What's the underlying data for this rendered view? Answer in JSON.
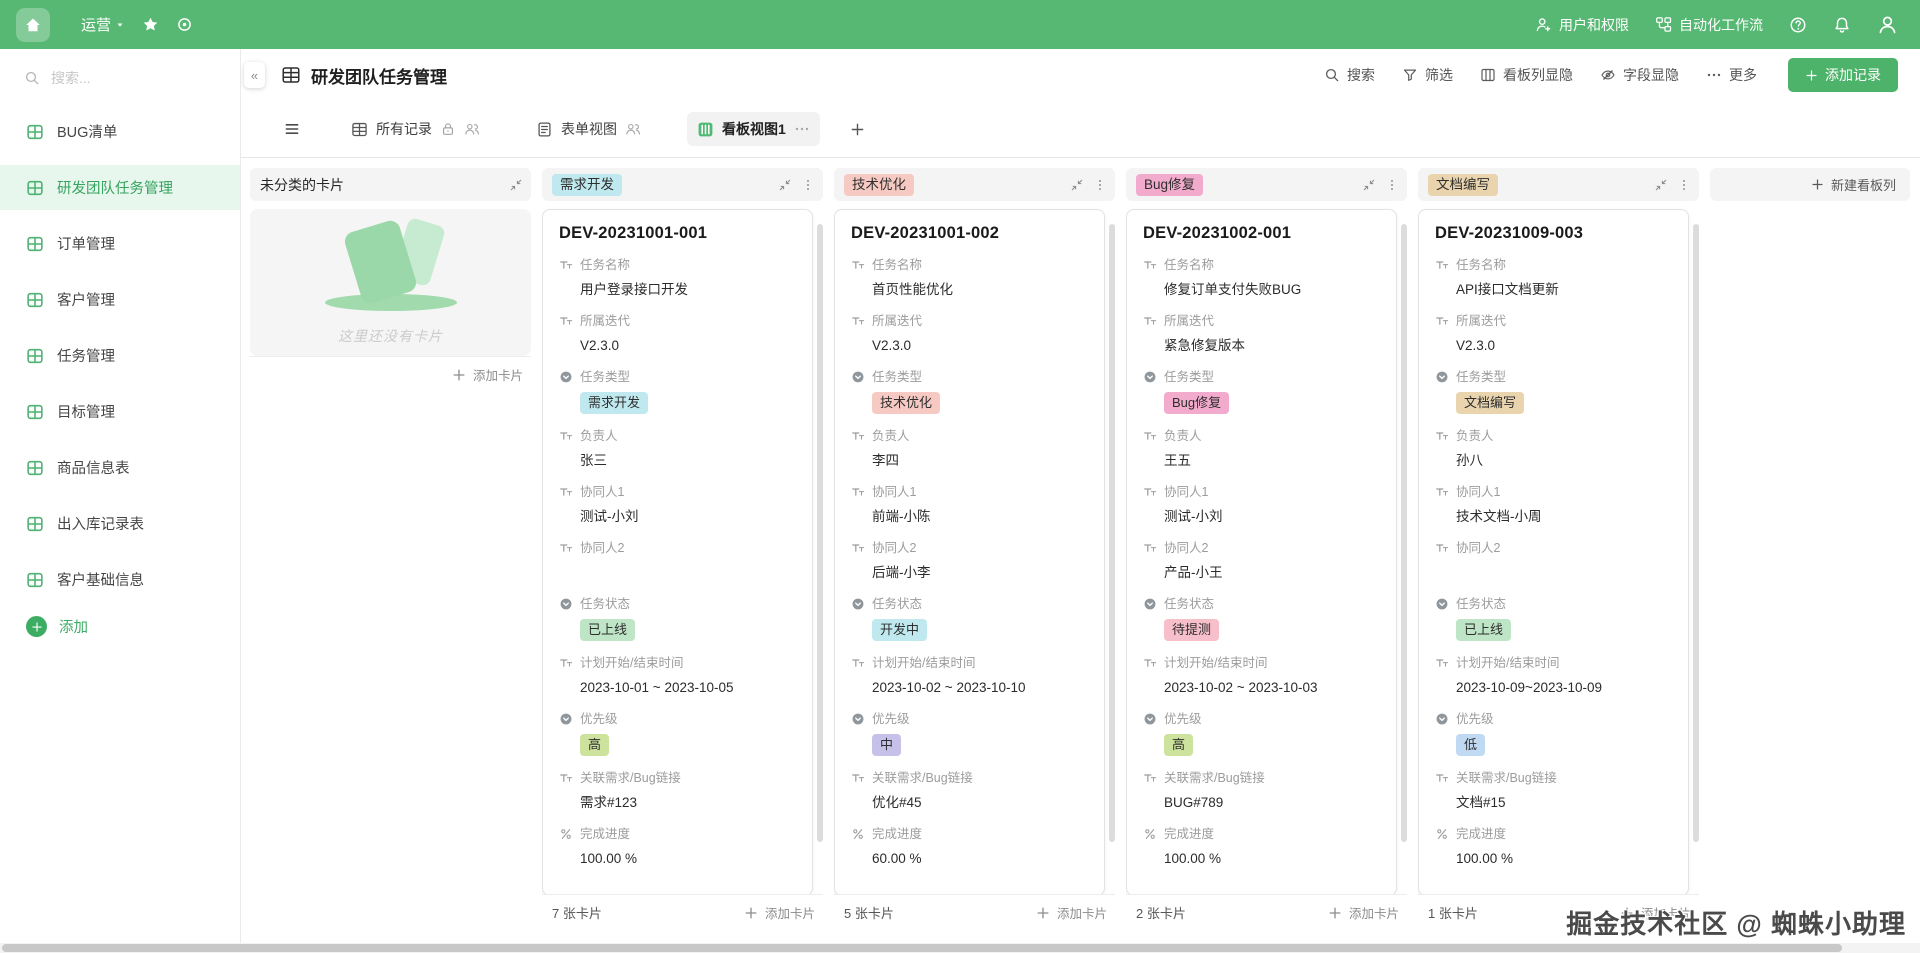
{
  "topbar": {
    "workspace": "运营",
    "right_items": [
      {
        "icon": "user-plus",
        "label": "用户和权限"
      },
      {
        "icon": "workflow",
        "label": "自动化工作流"
      }
    ]
  },
  "sidebar": {
    "search_placeholder": "搜索...",
    "items": [
      {
        "label": "BUG清单",
        "active": false
      },
      {
        "label": "研发团队任务管理",
        "active": true
      },
      {
        "label": "订单管理",
        "active": false
      },
      {
        "label": "客户管理",
        "active": false
      },
      {
        "label": "任务管理",
        "active": false
      },
      {
        "label": "目标管理",
        "active": false
      },
      {
        "label": "商品信息表",
        "active": false
      },
      {
        "label": "出入库记录表",
        "active": false
      },
      {
        "label": "客户基础信息",
        "active": false
      }
    ],
    "add_label": "添加"
  },
  "header": {
    "title": "研发团队任务管理",
    "actions": [
      {
        "icon": "search",
        "label": "搜索"
      },
      {
        "icon": "filter",
        "label": "筛选"
      },
      {
        "icon": "board",
        "label": "看板列显隐"
      },
      {
        "icon": "eye-off",
        "label": "字段显隐"
      },
      {
        "icon": "more",
        "label": "更多"
      }
    ],
    "add_record_label": "添加记录"
  },
  "tabs": [
    {
      "icon": "grid",
      "label": "所有记录",
      "extras": [
        "lock",
        "people"
      ],
      "active": false
    },
    {
      "icon": "form",
      "label": "表单视图",
      "extras": [
        "people"
      ],
      "active": false
    },
    {
      "icon": "kanban",
      "label": "看板视图1",
      "extras": [
        "more"
      ],
      "active": true
    }
  ],
  "board": {
    "add_card_label": "添加卡片",
    "new_column_label": "新建看板列",
    "columns": [
      {
        "title": "未分类的卡片",
        "empty": true,
        "empty_text": "这里还没有卡片",
        "footer_count": ""
      },
      {
        "title": "需求开发",
        "chip_color": "#BFE9EF",
        "footer_count": "7 张卡片",
        "card": {
          "id": "DEV-20231001-001",
          "fields": [
            {
              "icon": "text",
              "label": "任务名称",
              "value": "用户登录接口开发"
            },
            {
              "icon": "text",
              "label": "所属迭代",
              "value": "V2.3.0"
            },
            {
              "icon": "select",
              "label": "任务类型",
              "chip": "需求开发",
              "chip_color": "#BFE9EF"
            },
            {
              "icon": "text",
              "label": "负责人",
              "value": "张三"
            },
            {
              "icon": "text",
              "label": "协同人1",
              "value": "测试-小刘"
            },
            {
              "icon": "text",
              "label": "协同人2",
              "value": ""
            },
            {
              "icon": "select",
              "label": "任务状态",
              "chip": "已上线",
              "chip_color": "#BEE5C6"
            },
            {
              "icon": "text",
              "label": "计划开始/结束时间",
              "value": "2023-10-01 ~ 2023-10-05"
            },
            {
              "icon": "select",
              "label": "优先级",
              "chip": "高",
              "chip_color": "#CDE29C"
            },
            {
              "icon": "text",
              "label": "关联需求/Bug链接",
              "value": "需求#123"
            },
            {
              "icon": "percent",
              "label": "完成进度",
              "value": "100.00 %"
            }
          ]
        }
      },
      {
        "title": "技术优化",
        "chip_color": "#F6CAC3",
        "footer_count": "5 张卡片",
        "card": {
          "id": "DEV-20231001-002",
          "fields": [
            {
              "icon": "text",
              "label": "任务名称",
              "value": "首页性能优化"
            },
            {
              "icon": "text",
              "label": "所属迭代",
              "value": "V2.3.0"
            },
            {
              "icon": "select",
              "label": "任务类型",
              "chip": "技术优化",
              "chip_color": "#F6CAC3"
            },
            {
              "icon": "text",
              "label": "负责人",
              "value": "李四"
            },
            {
              "icon": "text",
              "label": "协同人1",
              "value": "前端-小陈"
            },
            {
              "icon": "text",
              "label": "协同人2",
              "value": "后端-小李"
            },
            {
              "icon": "select",
              "label": "任务状态",
              "chip": "开发中",
              "chip_color": "#BFE9EF"
            },
            {
              "icon": "text",
              "label": "计划开始/结束时间",
              "value": "2023-10-02 ~ 2023-10-10"
            },
            {
              "icon": "select",
              "label": "优先级",
              "chip": "中",
              "chip_color": "#C6C1E8"
            },
            {
              "icon": "text",
              "label": "关联需求/Bug链接",
              "value": "优化#45"
            },
            {
              "icon": "percent",
              "label": "完成进度",
              "value": "60.00 %"
            }
          ]
        }
      },
      {
        "title": "Bug修复",
        "chip_color": "#F3ABCD",
        "footer_count": "2 张卡片",
        "card": {
          "id": "DEV-20231002-001",
          "fields": [
            {
              "icon": "text",
              "label": "任务名称",
              "value": "修复订单支付失败BUG"
            },
            {
              "icon": "text",
              "label": "所属迭代",
              "value": "紧急修复版本"
            },
            {
              "icon": "select",
              "label": "任务类型",
              "chip": "Bug修复",
              "chip_color": "#F3ABCD"
            },
            {
              "icon": "text",
              "label": "负责人",
              "value": "王五"
            },
            {
              "icon": "text",
              "label": "协同人1",
              "value": "测试-小刘"
            },
            {
              "icon": "text",
              "label": "协同人2",
              "value": "产品-小王"
            },
            {
              "icon": "select",
              "label": "任务状态",
              "chip": "待提测",
              "chip_color": "#F7BFC9"
            },
            {
              "icon": "text",
              "label": "计划开始/结束时间",
              "value": "2023-10-02 ~ 2023-10-03"
            },
            {
              "icon": "select",
              "label": "优先级",
              "chip": "高",
              "chip_color": "#CDE29C"
            },
            {
              "icon": "text",
              "label": "关联需求/Bug链接",
              "value": "BUG#789"
            },
            {
              "icon": "percent",
              "label": "完成进度",
              "value": "100.00 %"
            }
          ]
        }
      },
      {
        "title": "文档编写",
        "chip_color": "#E9D4AE",
        "footer_count": "1 张卡片",
        "card": {
          "id": "DEV-20231009-003",
          "fields": [
            {
              "icon": "text",
              "label": "任务名称",
              "value": "API接口文档更新"
            },
            {
              "icon": "text",
              "label": "所属迭代",
              "value": "V2.3.0"
            },
            {
              "icon": "select",
              "label": "任务类型",
              "chip": "文档编写",
              "chip_color": "#E9D4AE"
            },
            {
              "icon": "text",
              "label": "负责人",
              "value": "孙八"
            },
            {
              "icon": "text",
              "label": "协同人1",
              "value": "技术文档-小周"
            },
            {
              "icon": "text",
              "label": "协同人2",
              "value": ""
            },
            {
              "icon": "select",
              "label": "任务状态",
              "chip": "已上线",
              "chip_color": "#BEE5C6"
            },
            {
              "icon": "text",
              "label": "计划开始/结束时间",
              "value": "2023-10-09~2023-10-09"
            },
            {
              "icon": "select",
              "label": "优先级",
              "chip": "低",
              "chip_color": "#C1DAF4"
            },
            {
              "icon": "text",
              "label": "关联需求/Bug链接",
              "value": "文档#15"
            },
            {
              "icon": "percent",
              "label": "完成进度",
              "value": "100.00 %"
            }
          ]
        }
      }
    ]
  },
  "watermark": "掘金技术社区 @ 蜘蛛小助理",
  "colors": {
    "topbar_green": "#57B873",
    "primary_green": "#3DAD64",
    "active_sidebar_bg": "#E8F7EE"
  }
}
